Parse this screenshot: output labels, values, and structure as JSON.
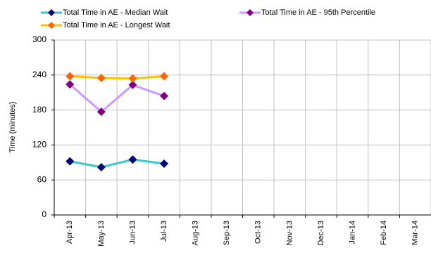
{
  "chart_data": {
    "type": "line",
    "y_label": "Time (minutes)",
    "categories": [
      "Apr-13",
      "May-13",
      "Jun-13",
      "Jul-13",
      "Aug-13",
      "Sep-13",
      "Oct-13",
      "Nov-13",
      "Dec-13",
      "Jan-14",
      "Feb-14",
      "Mar-14"
    ],
    "series": [
      {
        "name": "Total Time in AE - Median Wait",
        "color": "#33cccc",
        "marker_color": "#000080",
        "values": [
          92,
          82,
          95,
          88,
          null,
          null,
          null,
          null,
          null,
          null,
          null,
          null
        ]
      },
      {
        "name": "Total Time in AE - 95th Percentile",
        "color": "#cc99ff",
        "marker_color": "#800080",
        "values": [
          224,
          177,
          223,
          204,
          null,
          null,
          null,
          null,
          null,
          null,
          null,
          null
        ]
      },
      {
        "name": "Total Time in AE - Longest Wait",
        "color": "#ffc000",
        "marker_color": "#ff6600",
        "values": [
          238,
          235,
          234,
          238,
          null,
          null,
          null,
          null,
          null,
          null,
          null,
          null
        ]
      }
    ],
    "ylim": [
      0,
      300
    ],
    "yticks": [
      0,
      60,
      120,
      180,
      240,
      300
    ],
    "grid": true
  }
}
